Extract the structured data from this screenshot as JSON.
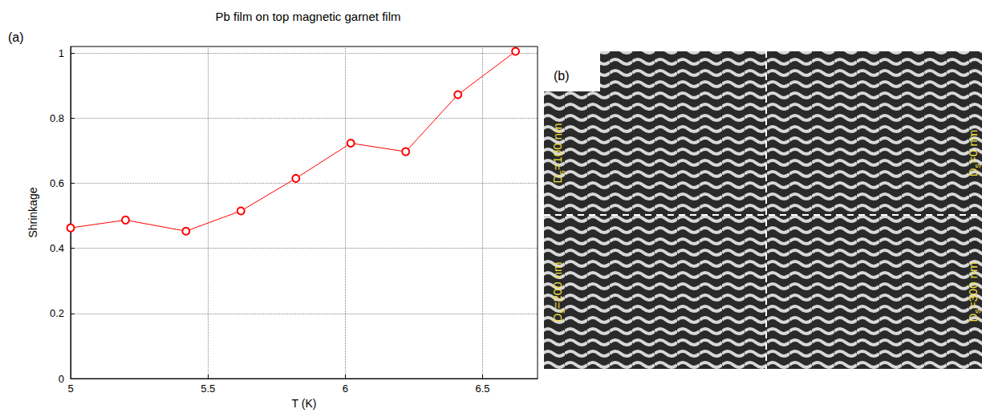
{
  "chart_data": {
    "type": "line",
    "panel": "(a)",
    "title": "Pb film on top magnetic garnet film",
    "x_label": "T (K)",
    "y_label": "Shrinkage",
    "x": [
      5.0,
      5.2,
      5.42,
      5.62,
      5.82,
      6.02,
      6.22,
      6.41,
      6.62
    ],
    "values": [
      0.463,
      0.487,
      0.453,
      0.515,
      0.615,
      0.723,
      0.697,
      0.872,
      1.005
    ],
    "color": "#ff0000",
    "marker": "circle",
    "line_style": "solid",
    "xlim": [
      5,
      6.7
    ],
    "xticks": [
      5,
      5.5,
      6,
      6.5
    ],
    "ylim": [
      0,
      1.02
    ],
    "yticks": [
      0,
      0.2,
      0.4,
      0.6,
      0.8,
      1
    ],
    "grid": true
  },
  "image_panel": {
    "panel": "(b)",
    "labels": [
      {
        "symbol": "D",
        "subscript": "s",
        "text": "=100 nm"
      },
      {
        "symbol": "D",
        "subscript": "s",
        "text": "=0 nm"
      },
      {
        "symbol": "D",
        "subscript": "s",
        "text": "=200 nm"
      },
      {
        "symbol": "D",
        "subscript": "s",
        "text": "=300 nm"
      }
    ]
  }
}
